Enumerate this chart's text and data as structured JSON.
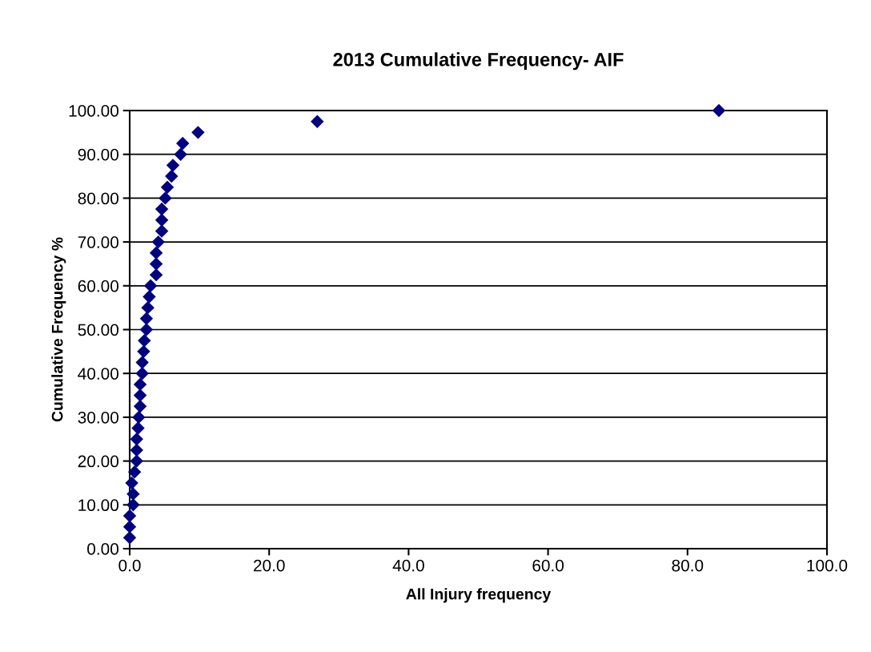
{
  "chart_data": {
    "type": "scatter",
    "title": "2013 Cumulative Frequency- AIF",
    "xlabel": "All Injury frequency",
    "ylabel": "Cumulative Frequency %",
    "x": [
      0.0,
      0.0,
      0.0,
      0.5,
      0.5,
      0.3,
      0.7,
      1.0,
      1.0,
      1.0,
      1.2,
      1.3,
      1.5,
      1.5,
      1.5,
      1.8,
      1.8,
      2.0,
      2.1,
      2.4,
      2.4,
      2.6,
      2.8,
      3.0,
      3.8,
      3.8,
      3.8,
      4.1,
      4.6,
      4.6,
      4.6,
      5.1,
      5.4,
      6.0,
      6.2,
      7.3,
      7.6,
      9.8,
      26.9,
      84.5
    ],
    "values": [
      2.5,
      5,
      7.5,
      10,
      12.5,
      15,
      17.5,
      20,
      22.5,
      25,
      27.5,
      30,
      32.5,
      35,
      37.5,
      40,
      42.5,
      45,
      47.5,
      50,
      52.5,
      55,
      57.5,
      60,
      62.5,
      65,
      67.5,
      70,
      72.5,
      75,
      77.5,
      80,
      82.5,
      85,
      87.5,
      90,
      92.5,
      95,
      97.5,
      100
    ],
    "color": "#000080",
    "marker": "diamond",
    "grid": "y",
    "legend": false,
    "xlim": [
      0,
      100
    ],
    "xticks": [
      {
        "value": 0,
        "label": "0.0"
      },
      {
        "value": 20,
        "label": "20.0"
      },
      {
        "value": 40,
        "label": "40.0"
      },
      {
        "value": 60,
        "label": "60.0"
      },
      {
        "value": 80,
        "label": "80.0"
      },
      {
        "value": 100,
        "label": "100.0"
      }
    ],
    "ylim": [
      0,
      100
    ],
    "yticks": [
      {
        "value": 0,
        "label": "0.00"
      },
      {
        "value": 10,
        "label": "10.00"
      },
      {
        "value": 20,
        "label": "20.00"
      },
      {
        "value": 30,
        "label": "30.00"
      },
      {
        "value": 40,
        "label": "40.00"
      },
      {
        "value": 50,
        "label": "50.00"
      },
      {
        "value": 60,
        "label": "60.00"
      },
      {
        "value": 70,
        "label": "70.00"
      },
      {
        "value": 80,
        "label": "80.00"
      },
      {
        "value": 90,
        "label": "90.00"
      },
      {
        "value": 100,
        "label": "100.00"
      }
    ]
  }
}
